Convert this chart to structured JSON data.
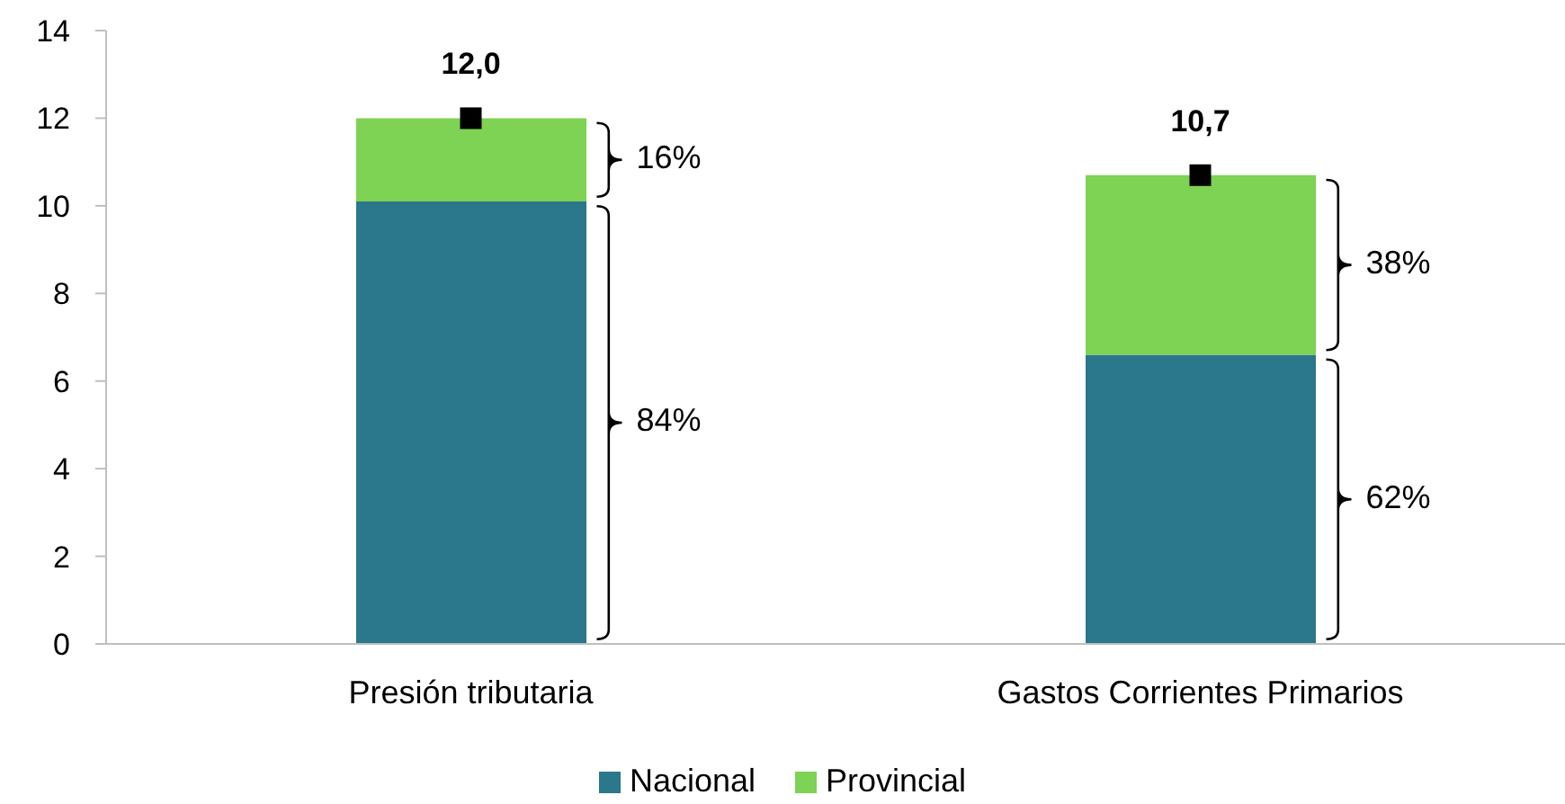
{
  "chart_data": {
    "type": "bar",
    "stacked": true,
    "categories": [
      "Presión tributaria",
      "Gastos Corrientes Primarios"
    ],
    "series": [
      {
        "name": "Nacional",
        "color": "#2b778b",
        "values": [
          10.1,
          6.6
        ]
      },
      {
        "name": "Provincial",
        "color": "#7ed254",
        "values": [
          1.9,
          4.1
        ]
      },
      {
        "type": "scatter",
        "color": "#000000",
        "values": [
          12.0,
          10.7
        ],
        "value_labels": [
          "12,0",
          "10,7"
        ],
        "marker": "square"
      }
    ],
    "ylim": [
      0,
      14
    ],
    "yticks": [
      0,
      2,
      4,
      6,
      8,
      10,
      12,
      14
    ],
    "grid": false,
    "legend": "bottom",
    "annotations": [
      "84%",
      "16%",
      "62%",
      "38%"
    ]
  }
}
